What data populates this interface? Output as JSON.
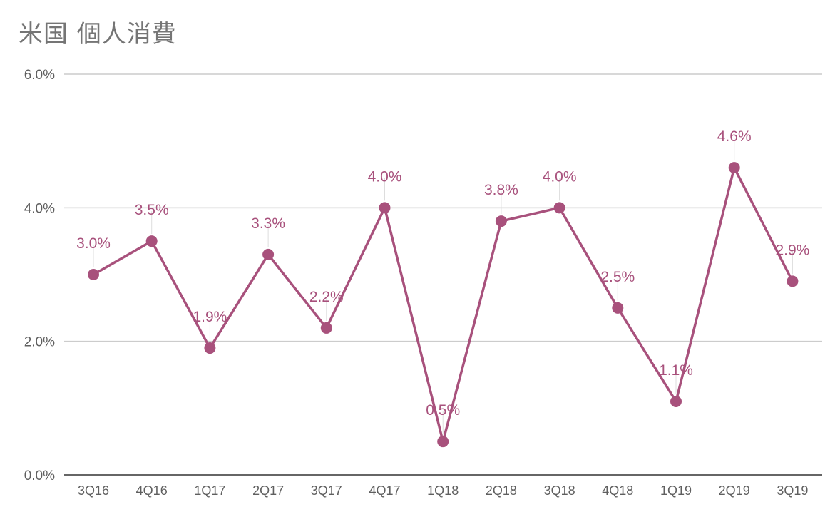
{
  "title": "米国 個人消費",
  "colors": {
    "series": "#a8517c",
    "grid": "#cccccc",
    "axis": "#333333",
    "leader": "#dddddd"
  },
  "chart_data": {
    "type": "line",
    "title": "米国 個人消費",
    "xlabel": "",
    "ylabel": "",
    "categories": [
      "3Q16",
      "4Q16",
      "1Q17",
      "2Q17",
      "3Q17",
      "4Q17",
      "1Q18",
      "2Q18",
      "3Q18",
      "4Q18",
      "1Q19",
      "2Q19",
      "3Q19"
    ],
    "series": [
      {
        "values": [
          3.0,
          3.5,
          1.9,
          3.3,
          2.2,
          4.0,
          0.5,
          3.8,
          4.0,
          2.5,
          1.1,
          4.6,
          2.9
        ],
        "labels": [
          "3.0%",
          "3.5%",
          "1.9%",
          "3.3%",
          "2.2%",
          "4.0%",
          "0.5%",
          "3.8%",
          "4.0%",
          "2.5%",
          "1.1%",
          "4.6%",
          "2.9%"
        ]
      }
    ],
    "ylim": [
      0,
      6
    ],
    "yticks": [
      0,
      2,
      4,
      6
    ],
    "ytick_labels": [
      "0.0%",
      "2.0%",
      "4.0%",
      "6.0%"
    ],
    "grid": true,
    "legend": "none",
    "markers": true,
    "data_labels": true
  }
}
